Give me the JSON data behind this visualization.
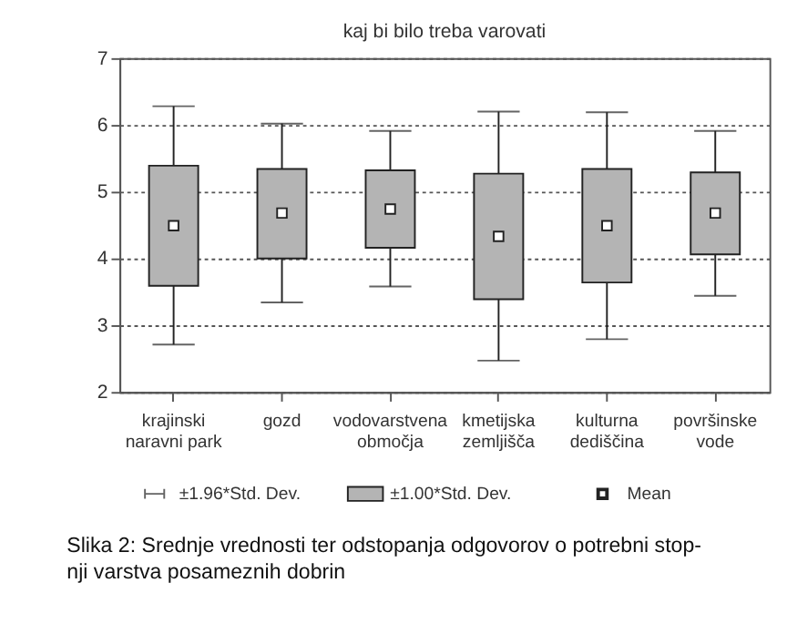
{
  "chart_data": {
    "type": "box",
    "title": "kaj bi bilo treba varovati",
    "categories": [
      "krajinski\nnaravni park",
      "gozd",
      "vodovarstvena\nobmočja",
      "kmetijska\nzemljišča",
      "kulturna\ndediščina",
      "površinske\nvode"
    ],
    "boxes": [
      {
        "low": 2.71,
        "q1": 3.59,
        "median": 4.49,
        "q3": 5.39,
        "high": 6.28
      },
      {
        "low": 3.34,
        "q1": 4.0,
        "median": 4.68,
        "q3": 5.34,
        "high": 6.02
      },
      {
        "low": 3.58,
        "q1": 4.16,
        "median": 4.74,
        "q3": 5.32,
        "high": 5.91
      },
      {
        "low": 2.47,
        "q1": 3.39,
        "median": 4.33,
        "q3": 5.27,
        "high": 6.2
      },
      {
        "low": 2.79,
        "q1": 3.64,
        "median": 4.49,
        "q3": 5.34,
        "high": 6.19
      },
      {
        "low": 3.44,
        "q1": 4.06,
        "median": 4.68,
        "q3": 5.29,
        "high": 5.91
      }
    ],
    "color": "#b4b4b4",
    "ylim": [
      2,
      7
    ],
    "yticks": [
      2,
      3,
      4,
      5,
      6,
      7
    ],
    "grid": "y",
    "annotations": [
      "±1.96*Std. Dev.",
      "±1.00*Std. Dev.",
      "Mean",
      "Slika 2: Srednje vrednosti ter odstopanja odgovorov o potrebni stop-\nnji varstva posameznih dobrin"
    ]
  }
}
